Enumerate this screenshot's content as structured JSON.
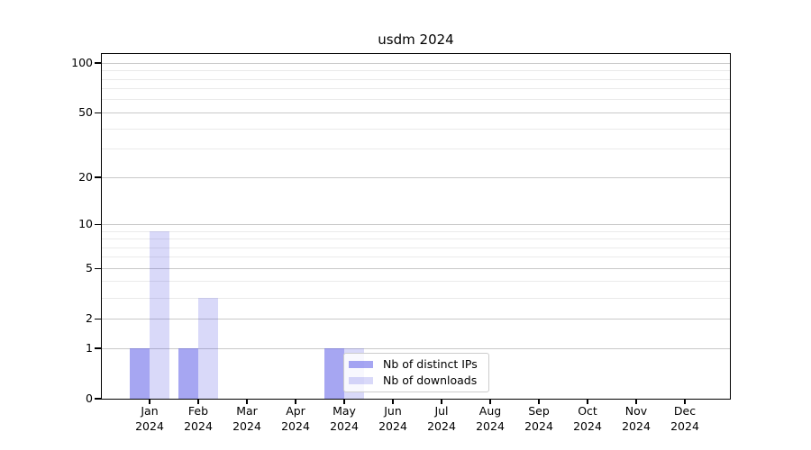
{
  "chart_data": {
    "type": "bar",
    "title": "usdm 2024",
    "categories": [
      {
        "month": "Jan",
        "year": "2024"
      },
      {
        "month": "Feb",
        "year": "2024"
      },
      {
        "month": "Mar",
        "year": "2024"
      },
      {
        "month": "Apr",
        "year": "2024"
      },
      {
        "month": "May",
        "year": "2024"
      },
      {
        "month": "Jun",
        "year": "2024"
      },
      {
        "month": "Jul",
        "year": "2024"
      },
      {
        "month": "Aug",
        "year": "2024"
      },
      {
        "month": "Sep",
        "year": "2024"
      },
      {
        "month": "Oct",
        "year": "2024"
      },
      {
        "month": "Nov",
        "year": "2024"
      },
      {
        "month": "Dec",
        "year": "2024"
      }
    ],
    "series": [
      {
        "name": "Nb of distinct IPs",
        "color": "rgba(77,77,229,0.5)",
        "values": [
          1,
          1,
          0,
          0,
          1,
          0,
          0,
          0,
          0,
          0,
          0,
          0
        ]
      },
      {
        "name": "Nb of downloads",
        "color": "rgba(77,77,229,0.21)",
        "values": [
          9,
          3,
          0,
          0,
          1,
          0,
          0,
          0,
          0,
          0,
          0,
          0
        ]
      }
    ],
    "y_scale": "log1p",
    "ylim": [
      0,
      113.6
    ],
    "y_major_ticks": [
      100,
      50,
      20,
      10,
      5,
      2,
      1,
      0
    ],
    "y_minor_gridlines": [
      3,
      4,
      6,
      7,
      8,
      9,
      30,
      40,
      60,
      70,
      80,
      90
    ],
    "grid": true,
    "legend_position": "bottom-center-overlapping-plot",
    "colors": {
      "major_grid": "#c9c9c9",
      "minor_grid": "#eaeaea",
      "spine": "#000000",
      "text": "#000000",
      "background": "#ffffff"
    }
  }
}
